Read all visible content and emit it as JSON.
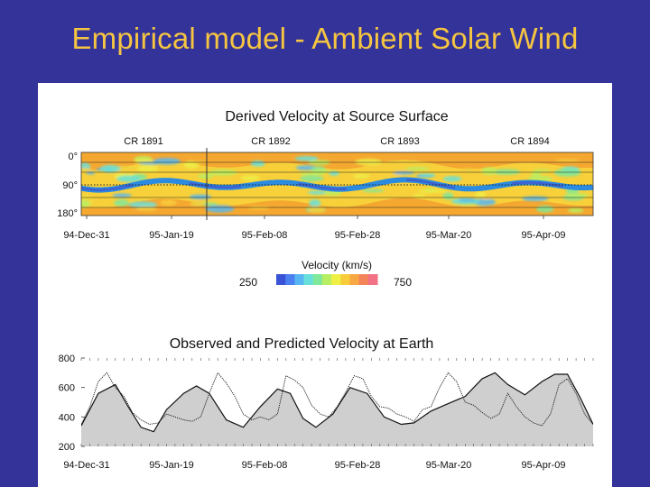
{
  "slide": {
    "title": "Empirical model - Ambient Solar Wind"
  },
  "chart_data": [
    {
      "type": "heatmap",
      "title": "Derived Velocity at Source Surface",
      "carrington_rotations": [
        "CR 1891",
        "CR 1892",
        "CR 1893",
        "CR 1894"
      ],
      "y_ticks": [
        "0°",
        "90°",
        "180°"
      ],
      "x_ticks": [
        "94-Dec-31",
        "95-Jan-19",
        "95-Feb-08",
        "95-Feb-28",
        "95-Mar-20",
        "95-Apr-09"
      ],
      "colorbar": {
        "label": "Velocity (km/s)",
        "min": "250",
        "max": "750",
        "colors": [
          "#3a52d6",
          "#4c7ff0",
          "#58b6f2",
          "#67e0dc",
          "#7fe89a",
          "#b8ee62",
          "#efef46",
          "#f8cc3a",
          "#f7a843",
          "#f4845a",
          "#f17285"
        ]
      },
      "colors": {
        "background": "#f5a830",
        "band": "#f7d03a",
        "neutral_line": "#2a8be0",
        "core": "#3f5fd0"
      }
    },
    {
      "type": "line",
      "title": "Observed and Predicted Velocity at Earth",
      "x_ticks": [
        "94-Dec-31",
        "95-Jan-19",
        "95-Feb-08",
        "95-Feb-28",
        "95-Mar-20",
        "95-Apr-09"
      ],
      "y_ticks": [
        800,
        600,
        400,
        200
      ],
      "ylim": [
        200,
        800
      ],
      "xlim": [
        0,
        120
      ],
      "series": [
        {
          "name": "Predicted",
          "x": [
            0,
            4,
            8,
            11,
            14,
            17,
            20,
            24,
            27,
            30,
            34,
            38,
            42,
            46,
            49,
            52,
            55,
            59,
            63,
            67,
            71,
            75,
            78,
            82,
            86,
            90,
            94,
            97,
            100,
            104,
            108,
            111,
            114,
            117,
            120
          ],
          "values": [
            340,
            560,
            620,
            470,
            330,
            300,
            450,
            560,
            610,
            560,
            380,
            330,
            470,
            590,
            560,
            390,
            330,
            420,
            600,
            560,
            400,
            350,
            360,
            440,
            490,
            540,
            660,
            700,
            620,
            550,
            640,
            690,
            690,
            530,
            350
          ]
        },
        {
          "name": "Observed",
          "x": [
            0,
            2,
            4,
            6,
            8,
            10,
            12,
            14,
            16,
            18,
            20,
            22,
            24,
            26,
            28,
            30,
            32,
            34,
            36,
            38,
            40,
            42,
            44,
            46,
            48,
            50,
            52,
            54,
            56,
            58,
            60,
            62,
            64,
            66,
            68,
            70,
            72,
            74,
            76,
            78,
            80,
            82,
            84,
            86,
            88,
            90,
            92,
            94,
            96,
            98,
            100,
            102,
            104,
            106,
            108,
            110,
            112,
            114,
            116,
            118,
            120
          ],
          "values": [
            350,
            470,
            640,
            700,
            600,
            540,
            430,
            380,
            350,
            360,
            420,
            400,
            380,
            370,
            400,
            560,
            700,
            630,
            540,
            420,
            380,
            400,
            380,
            420,
            680,
            650,
            600,
            480,
            420,
            400,
            470,
            570,
            680,
            660,
            540,
            470,
            460,
            420,
            400,
            370,
            450,
            470,
            600,
            700,
            640,
            500,
            480,
            430,
            390,
            420,
            560,
            470,
            400,
            360,
            340,
            420,
            620,
            660,
            560,
            420,
            350
          ]
        }
      ],
      "colors": {
        "fill": "#cfcfcf",
        "line": "#111111"
      }
    }
  ]
}
